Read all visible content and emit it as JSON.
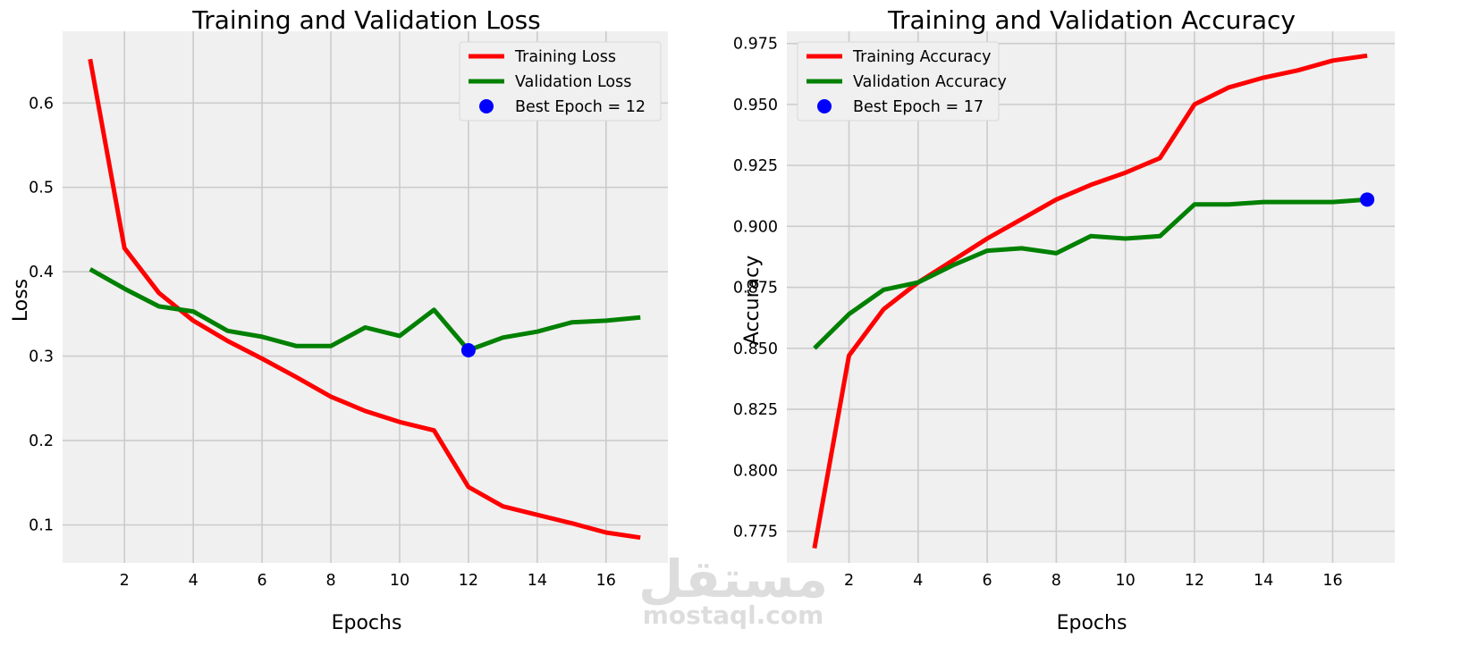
{
  "watermark": {
    "logo_text": "مستقل",
    "url_text": "mostaql.com"
  },
  "colors": {
    "training": "#ff0000",
    "validation": "#008000",
    "best_marker": "#0000ff",
    "plot_background": "#f0f0f0",
    "grid": "#cbcbcb"
  },
  "chart_data": [
    {
      "type": "line",
      "title": "Training and Validation Loss",
      "xlabel": "Epochs",
      "ylabel": "Loss",
      "x": [
        1,
        2,
        3,
        4,
        5,
        6,
        7,
        8,
        9,
        10,
        11,
        12,
        13,
        14,
        15,
        16,
        17
      ],
      "xlim": [
        0.2,
        17.8
      ],
      "ylim": [
        0.055,
        0.685
      ],
      "xticks": [
        2,
        4,
        6,
        8,
        10,
        12,
        14,
        16
      ],
      "yticks": [
        0.1,
        0.2,
        0.3,
        0.4,
        0.5,
        0.6
      ],
      "ytick_labels": [
        "0.1",
        "0.2",
        "0.3",
        "0.4",
        "0.5",
        "0.6"
      ],
      "grid": true,
      "legend_position": "top-right",
      "series": [
        {
          "name": "Training Loss",
          "color": "#ff0000",
          "values": [
            0.652,
            0.428,
            0.375,
            0.342,
            0.318,
            0.297,
            0.275,
            0.252,
            0.235,
            0.222,
            0.212,
            0.145,
            0.122,
            0.112,
            0.102,
            0.091,
            0.085
          ]
        },
        {
          "name": "Validation Loss",
          "color": "#008000",
          "values": [
            0.403,
            0.38,
            0.359,
            0.353,
            0.33,
            0.323,
            0.312,
            0.312,
            0.334,
            0.324,
            0.355,
            0.307,
            0.322,
            0.329,
            0.34,
            0.342,
            0.346
          ]
        }
      ],
      "best_point": {
        "label": "Best Epoch = 12",
        "x": 12,
        "y": 0.307,
        "color": "#0000ff"
      }
    },
    {
      "type": "line",
      "title": "Training and Validation Accuracy",
      "xlabel": "Epochs",
      "ylabel": "Accuracy",
      "x": [
        1,
        2,
        3,
        4,
        5,
        6,
        7,
        8,
        9,
        10,
        11,
        12,
        13,
        14,
        15,
        16,
        17
      ],
      "xlim": [
        0.2,
        17.8
      ],
      "ylim": [
        0.762,
        0.98
      ],
      "xticks": [
        2,
        4,
        6,
        8,
        10,
        12,
        14,
        16
      ],
      "yticks": [
        0.775,
        0.8,
        0.825,
        0.85,
        0.875,
        0.9,
        0.925,
        0.95,
        0.975
      ],
      "ytick_labels": [
        "0.775",
        "0.800",
        "0.825",
        "0.850",
        "0.875",
        "0.900",
        "0.925",
        "0.950",
        "0.975"
      ],
      "grid": true,
      "legend_position": "top-left",
      "series": [
        {
          "name": "Training Accuracy",
          "color": "#ff0000",
          "values": [
            0.768,
            0.847,
            0.866,
            0.877,
            0.886,
            0.895,
            0.903,
            0.911,
            0.917,
            0.922,
            0.928,
            0.95,
            0.957,
            0.961,
            0.964,
            0.968,
            0.97
          ]
        },
        {
          "name": "Validation Accuracy",
          "color": "#008000",
          "values": [
            0.85,
            0.864,
            0.874,
            0.877,
            0.884,
            0.89,
            0.891,
            0.889,
            0.896,
            0.895,
            0.896,
            0.909,
            0.909,
            0.91,
            0.91,
            0.91,
            0.911
          ]
        }
      ],
      "best_point": {
        "label": "Best Epoch = 17",
        "x": 17,
        "y": 0.911,
        "color": "#0000ff"
      }
    }
  ]
}
